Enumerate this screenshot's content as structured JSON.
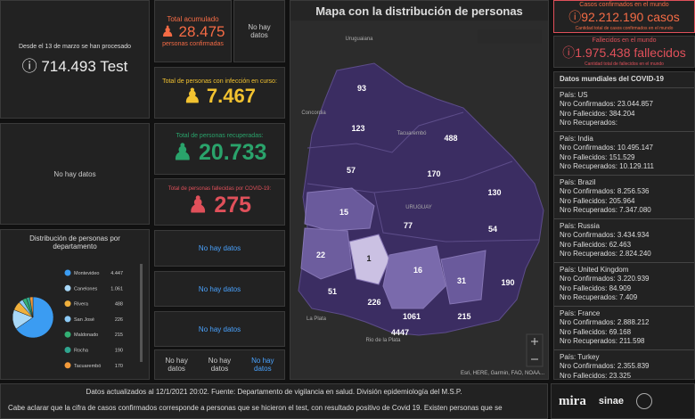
{
  "tests": {
    "caption": "Desde el 13 de marzo se han procesado",
    "value": "714.493 Test"
  },
  "no_data_left": "No hay datos",
  "total": {
    "label": "Total acumulado",
    "value": "28.475",
    "sub": "personas confirmadas"
  },
  "total_side": "No hay datos",
  "active": {
    "label": "Total de personas con infección en curso:",
    "value": "7.467"
  },
  "recovered": {
    "label": "Total de personas recuperadas:",
    "value": "20.733"
  },
  "deceased": {
    "label": "Total de personas fallecidas por COVID-19:",
    "value": "275"
  },
  "no_data_boxes": [
    "No hay datos",
    "No hay datos",
    "No hay datos"
  ],
  "bottom_boxes": [
    "No hay datos",
    "No hay datos",
    "No hay datos"
  ],
  "pie": {
    "title": "Distribución de personas por departamento",
    "categories": [
      "Montevideo",
      "Canelones",
      "Rivera",
      "San José",
      "Maldonado",
      "Rocha",
      "Tacuarembó"
    ],
    "values": [
      4447,
      1061,
      488,
      226,
      215,
      190,
      170
    ],
    "value_labels": [
      "4.447",
      "1.061",
      "488",
      "226",
      "215",
      "190",
      "170"
    ],
    "colors": [
      "#3b9cf2",
      "#a8d8f8",
      "#f0b03c",
      "#8ccaf5",
      "#33b074",
      "#2fa58f",
      "#f39a3a"
    ]
  },
  "map": {
    "title": "Mapa con la distribución de personas",
    "places": [
      "Uruguaiana",
      "Concordia",
      "Tacuarembó",
      "URUGUAY",
      "La Plata",
      "Rio de la Plata"
    ],
    "regions": [
      "93",
      "123",
      "488",
      "57",
      "170",
      "130",
      "15",
      "77",
      "54",
      "22",
      "1",
      "16",
      "31",
      "190",
      "51",
      "226",
      "1061",
      "215",
      "4447"
    ],
    "attribution": "Esri, HERE, Garmin, FAO, NOAA..."
  },
  "world": {
    "cases_label": "Casos confirmados en el mundo",
    "cases": "92.212.190 casos",
    "cases_note": "Cantidad total de casos confirmados en el mundo",
    "deaths_label": "Fallecidos en el mundo",
    "deaths": "1.975.438 fallecidos",
    "deaths_note": "Cantidad total de fallecidos en el mundo"
  },
  "countries": {
    "title": "Datos mundiales del COVID-19",
    "items": [
      {
        "country": "País: US",
        "confirmed": "Nro Confirmados: 23.044.857",
        "deaths": "Nro Fallecidos: 384.204",
        "recovered": "Nro Recuperados:"
      },
      {
        "country": "País: India",
        "confirmed": "Nro Confirmados: 10.495.147",
        "deaths": "Nro Fallecidos: 151.529",
        "recovered": "Nro Recuperados: 10.129.111"
      },
      {
        "country": "País: Brazil",
        "confirmed": "Nro Confirmados: 8.256.536",
        "deaths": "Nro Fallecidos: 205.964",
        "recovered": "Nro Recuperados: 7.347.080"
      },
      {
        "country": "País: Russia",
        "confirmed": "Nro Confirmados: 3.434.934",
        "deaths": "Nro Fallecidos: 62.463",
        "recovered": "Nro Recuperados: 2.824.240"
      },
      {
        "country": "País: United Kingdom",
        "confirmed": "Nro Confirmados: 3.220.939",
        "deaths": "Nro Fallecidos: 84.909",
        "recovered": "Nro Recuperados: 7.409"
      },
      {
        "country": "País: France",
        "confirmed": "Nro Confirmados: 2.888.212",
        "deaths": "Nro Fallecidos: 69.168",
        "recovered": "Nro Recuperados: 211.598"
      },
      {
        "country": "País: Turkey",
        "confirmed": "Nro Confirmados: 2.355.839",
        "deaths": "Nro Fallecidos: 23.325"
      }
    ]
  },
  "footer": {
    "updated": "Datos actualizados al 12/1/2021 20:02. Fuente: Departamento de vigilancia en salud. División epidemiología del M.S.P.",
    "note": "Cabe aclarar que la cifra de casos confirmados corresponde a personas que se hicieron el test, con resultado positivo de Covid 19. Existen personas que se",
    "logos": [
      "mira",
      "sinae"
    ]
  }
}
